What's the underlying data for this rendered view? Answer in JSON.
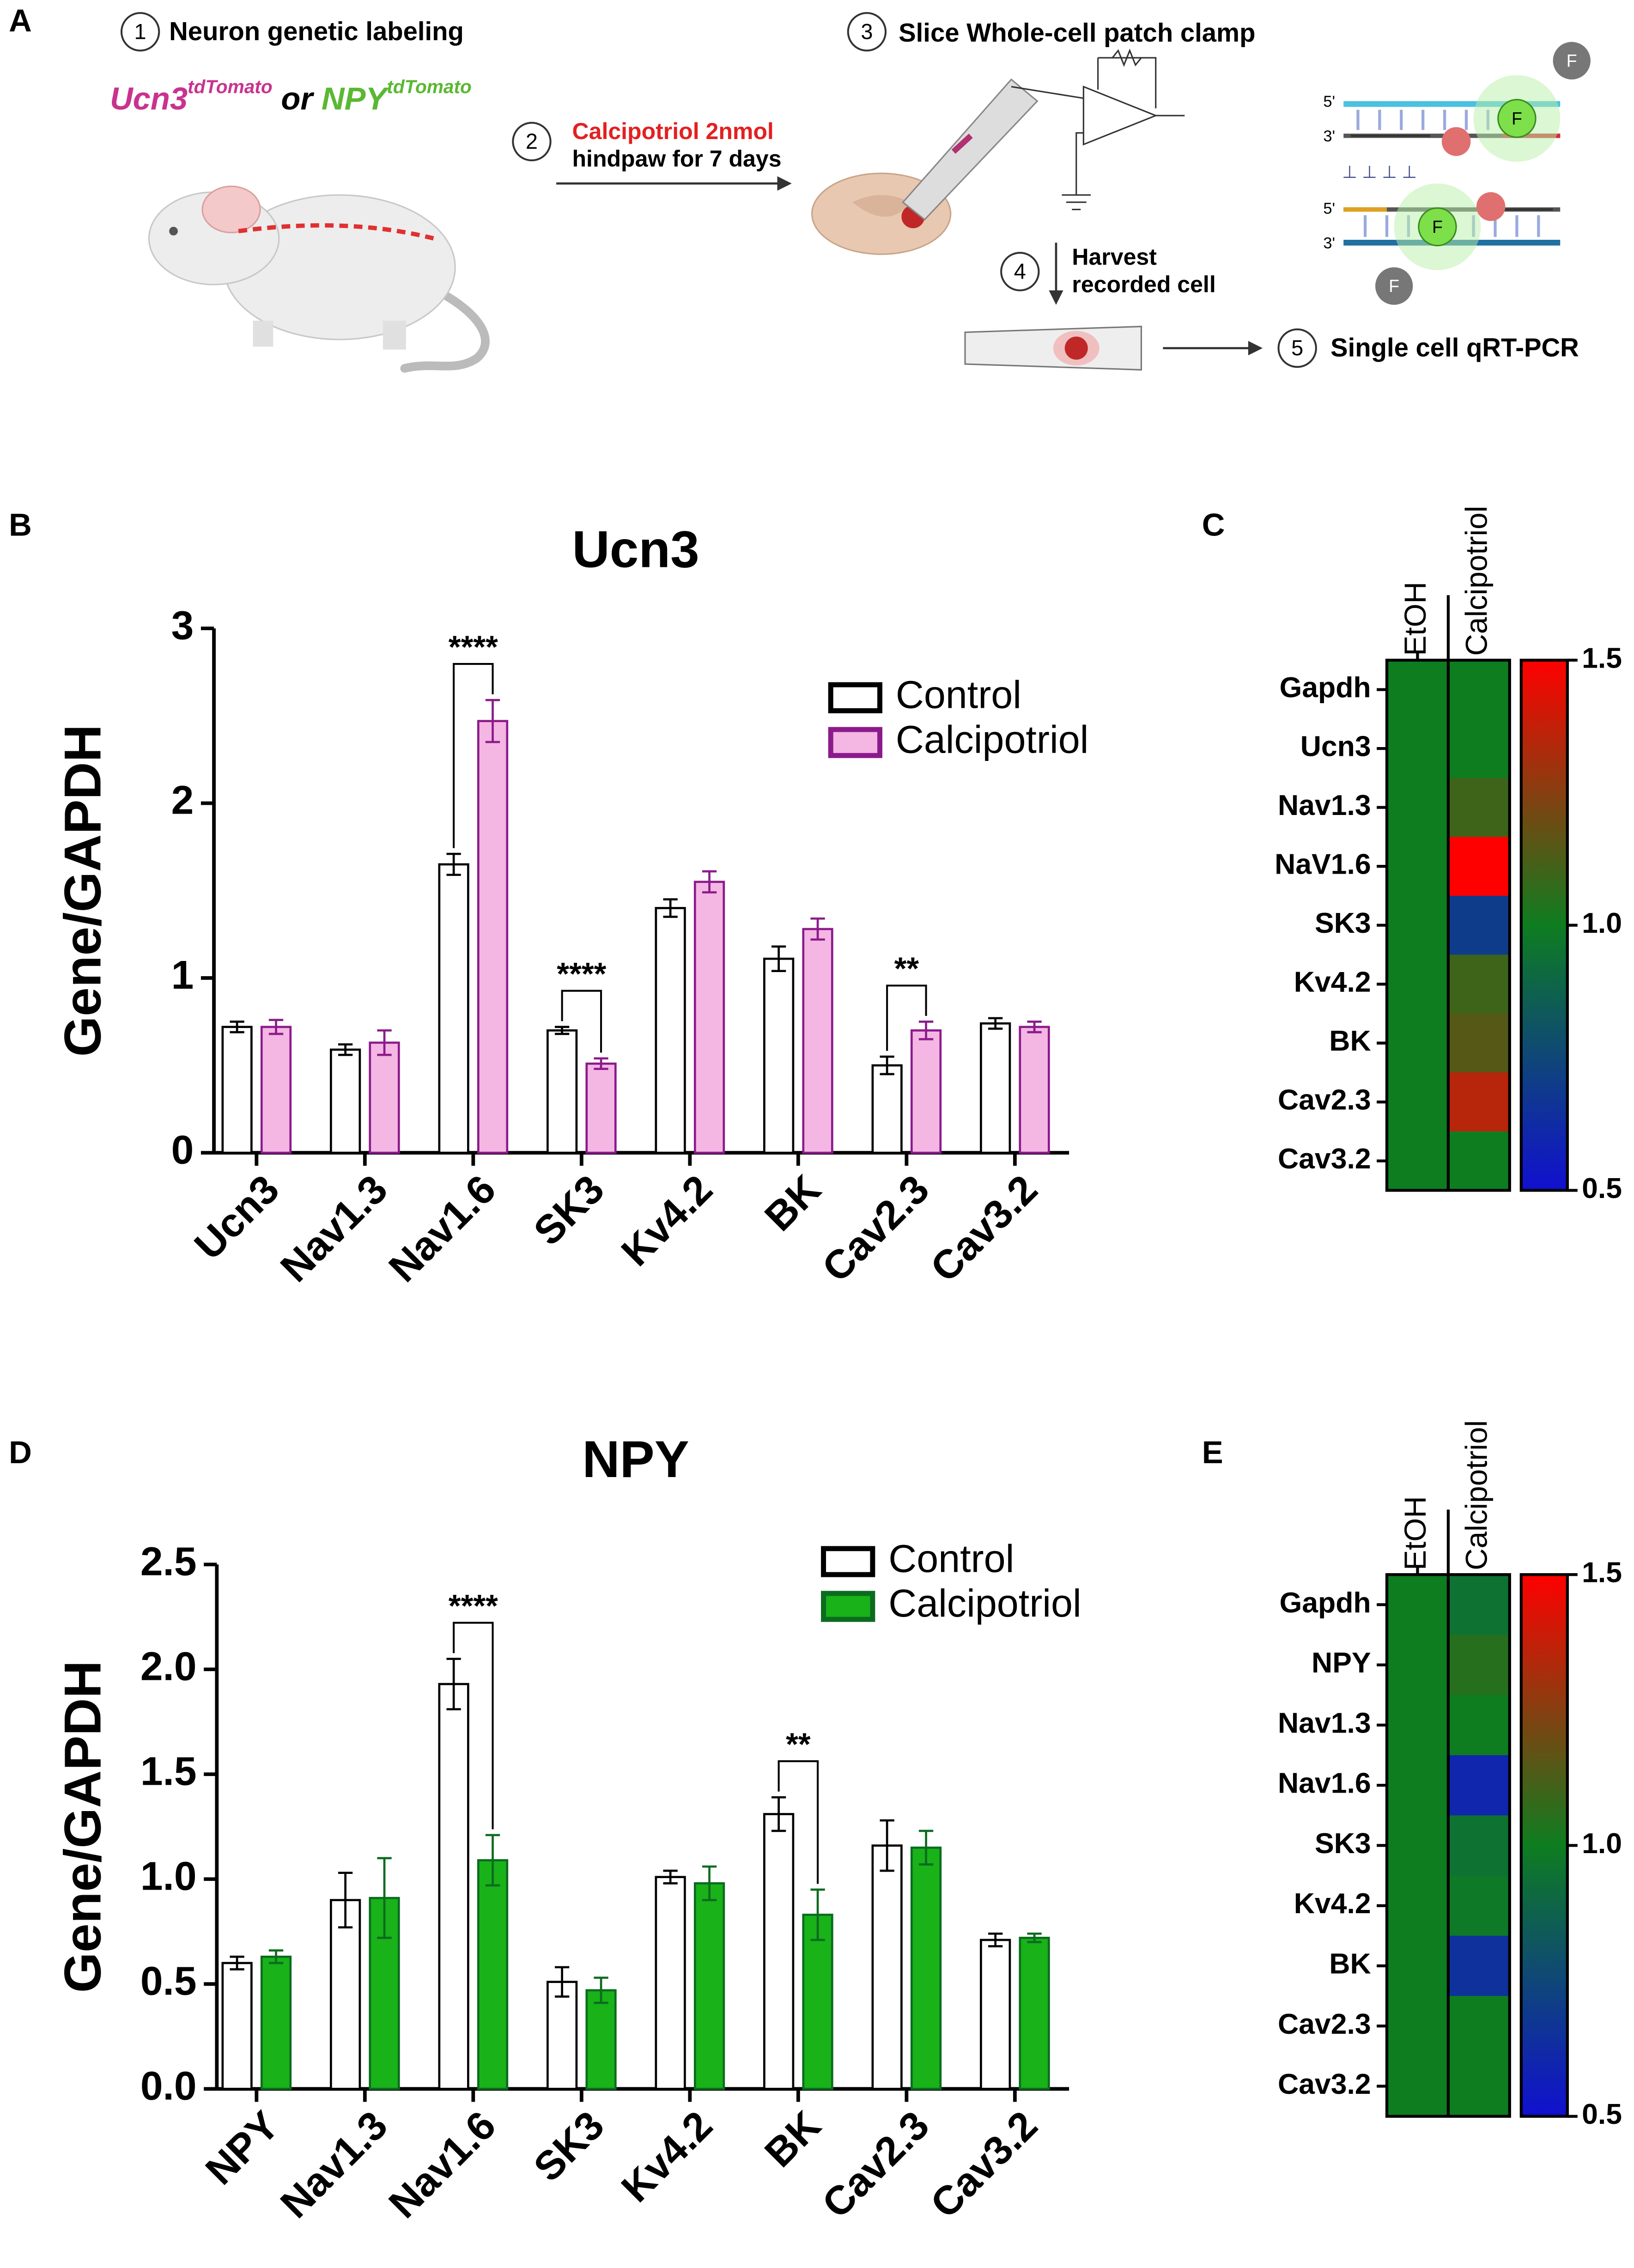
{
  "panel_labels": [
    "A",
    "B",
    "C",
    "D",
    "E"
  ],
  "diagram": {
    "step_numbers": [
      "1",
      "2",
      "3",
      "4",
      "5"
    ],
    "labeling": "Neuron genetic labeling",
    "ucn3": "Ucn3",
    "ucn3_sup": "tdTomato",
    "or": "or",
    "npy": "NPY",
    "npy_sup": "tdTomato",
    "treatment": [
      "Calcipotriol 2nmol",
      "hindpaw for 7 days"
    ],
    "patch": "Slice Whole-cell patch clamp",
    "harvest": [
      "Harvest",
      "recorded cell"
    ],
    "pcr": "Single cell qRT-PCR",
    "strand_ends": [
      "5'",
      "3'",
      "5'",
      "3'"
    ],
    "fluor": [
      "F",
      "F",
      "F",
      "F"
    ]
  },
  "chart_data": [
    {
      "type": "bar",
      "title": "Ucn3",
      "y_label": "Gene/GAPDH",
      "categories": [
        "Ucn3",
        "Nav1.3",
        "Nav1.6",
        "SK3",
        "Kv4.2",
        "BK",
        "Cav2.3",
        "Cav3.2"
      ],
      "series": [
        {
          "name": "Control",
          "color": "#ffffff",
          "edge_color": "#000000",
          "values": [
            0.72,
            0.59,
            1.65,
            0.7,
            1.4,
            1.11,
            0.5,
            0.74
          ],
          "errors": [
            0.03,
            0.03,
            0.06,
            0.02,
            0.05,
            0.07,
            0.05,
            0.03
          ]
        },
        {
          "name": "Calcipotriol",
          "color": "#f4b6e3",
          "edge_color": "#8b1a8b",
          "values": [
            0.72,
            0.63,
            2.47,
            0.51,
            1.55,
            1.28,
            0.7,
            0.72
          ],
          "errors": [
            0.04,
            0.07,
            0.12,
            0.03,
            0.06,
            0.06,
            0.05,
            0.03
          ]
        }
      ],
      "ylim": [
        0,
        3
      ],
      "yticks": [
        0,
        1,
        2,
        3
      ],
      "annotations": [
        {
          "category": "Nav1.6",
          "text": "****"
        },
        {
          "category": "SK3",
          "text": "****"
        },
        {
          "category": "Cav2.3",
          "text": "**"
        }
      ],
      "legend": "upper right"
    },
    {
      "type": "heatmap",
      "categories": [
        "Gapdh",
        "Ucn3",
        "Nav1.3",
        "NaV1.6",
        "SK3",
        "Kv4.2",
        "BK",
        "Cav2.3",
        "Cav3.2"
      ],
      "series": [
        {
          "name": "EtOH",
          "values": [
            1.0,
            1.0,
            1.0,
            1.0,
            1.0,
            1.0,
            1.0,
            1.0,
            1.0
          ]
        },
        {
          "name": "Calcipotriol",
          "values": [
            1.0,
            1.0,
            1.1,
            1.5,
            0.7,
            1.1,
            1.15,
            1.35,
            1.0
          ]
        }
      ],
      "zlim": [
        0.5,
        1.5
      ],
      "zticks": [
        0.5,
        {
          "value": 1,
          "label": "1.0"
        },
        1.5
      ],
      "colormap": [
        "#1010d0",
        "#0e7d20",
        "#ff0000"
      ]
    },
    {
      "type": "bar",
      "title": "NPY",
      "y_label": "Gene/GAPDH",
      "categories": [
        "NPY",
        "Nav1.3",
        "Nav1.6",
        "SK3",
        "Kv4.2",
        "BK",
        "Cav2.3",
        "Cav3.2"
      ],
      "series": [
        {
          "name": "Control",
          "color": "#ffffff",
          "edge_color": "#000000",
          "values": [
            0.6,
            0.9,
            1.93,
            0.51,
            1.01,
            1.31,
            1.16,
            0.71
          ],
          "errors": [
            0.03,
            0.13,
            0.12,
            0.07,
            0.03,
            0.08,
            0.12,
            0.03
          ]
        },
        {
          "name": "Calcipotriol",
          "color": "#19b219",
          "edge_color": "#0b6b1f",
          "values": [
            0.63,
            0.91,
            1.09,
            0.47,
            0.98,
            0.83,
            1.15,
            0.72
          ],
          "errors": [
            0.03,
            0.19,
            0.12,
            0.06,
            0.08,
            0.12,
            0.08,
            0.02
          ]
        }
      ],
      "ylim": [
        0,
        2.5
      ],
      "yticks": [
        {
          "value": 0,
          "label": "0.0"
        },
        0.5,
        {
          "value": 1,
          "label": "1.0"
        },
        1.5,
        {
          "value": 2,
          "label": "2.0"
        },
        2.5
      ],
      "annotations": [
        {
          "category": "Nav1.6",
          "text": "****"
        },
        {
          "category": "BK",
          "text": "**"
        }
      ],
      "legend": "upper right"
    },
    {
      "type": "heatmap",
      "categories": [
        "Gapdh",
        "NPY",
        "Nav1.3",
        "Nav1.6",
        "SK3",
        "Kv4.2",
        "BK",
        "Cav2.3",
        "Cav3.2"
      ],
      "series": [
        {
          "name": "EtOH",
          "values": [
            1.0,
            1.0,
            1.0,
            1.0,
            1.0,
            1.0,
            1.0,
            1.0,
            1.0
          ]
        },
        {
          "name": "Calcipotriol",
          "values": [
            0.95,
            1.05,
            1.0,
            0.6,
            0.95,
            0.98,
            0.65,
            1.0,
            1.0
          ]
        }
      ],
      "zlim": [
        0.5,
        1.5
      ],
      "zticks": [
        0.5,
        {
          "value": 1,
          "label": "1.0"
        },
        1.5
      ],
      "colormap": [
        "#1010d0",
        "#0e7d20",
        "#ff0000"
      ]
    }
  ]
}
